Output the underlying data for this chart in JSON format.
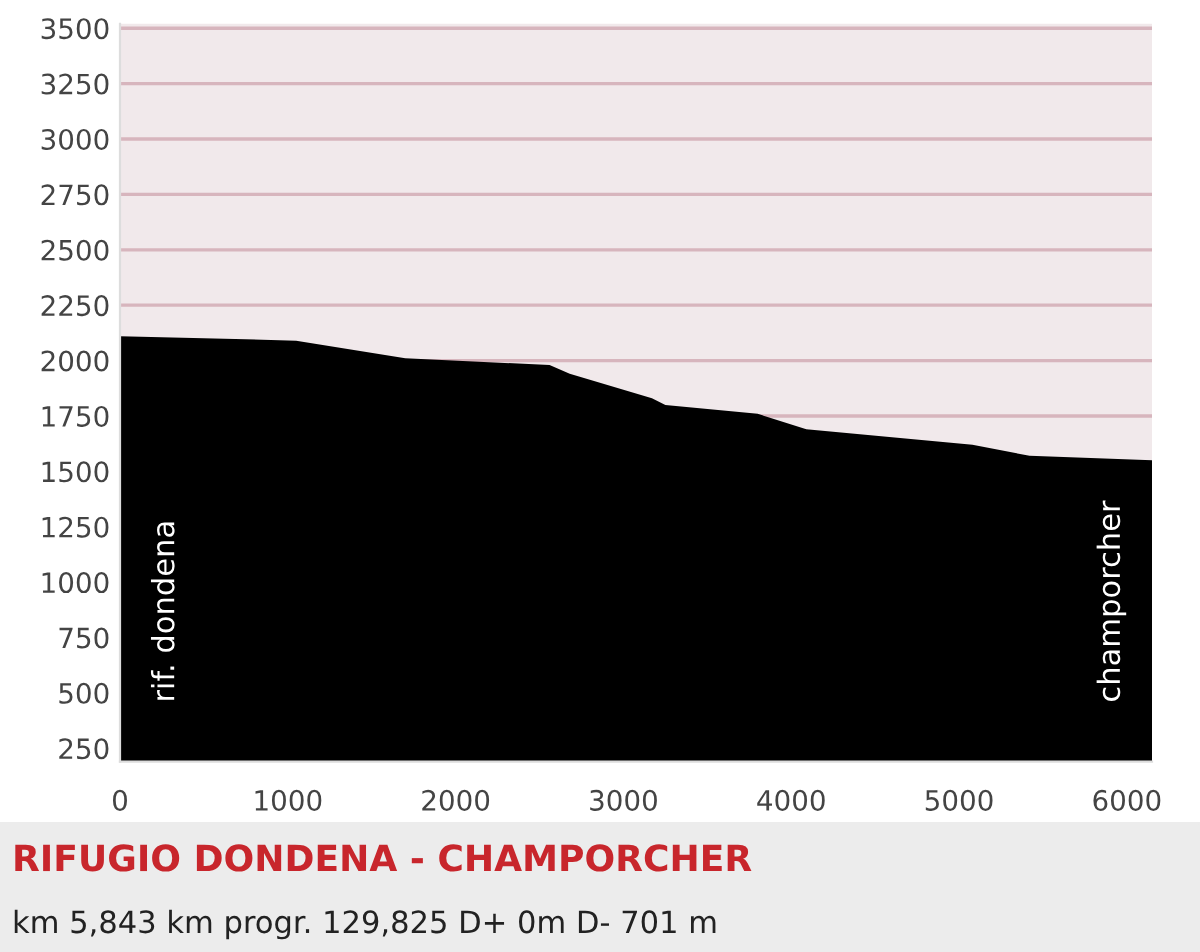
{
  "chart_data": {
    "type": "area",
    "title": "RIFUGIO DONDENA - CHAMPORCHER",
    "subtitle": "km 5,843 km progr. 129,825 D+ 0m D- 701 m",
    "x": [
      0,
      1050,
      1700,
      2560,
      2680,
      3170,
      3250,
      3800,
      4090,
      5080,
      5420,
      6150
    ],
    "values": [
      2110,
      2090,
      2010,
      1980,
      1940,
      1830,
      1800,
      1760,
      1690,
      1620,
      1570,
      1550
    ],
    "color": "#000000",
    "xlim": [
      0,
      6150
    ],
    "xticks": [
      0,
      1000,
      2000,
      3000,
      4000,
      5000,
      6000
    ],
    "ylim": [
      190,
      3520
    ],
    "yticks": [
      250,
      500,
      750,
      1000,
      1250,
      1500,
      1750,
      2000,
      2250,
      2500,
      2750,
      3000,
      3250,
      3500
    ],
    "grid": "y",
    "annotations": [
      "rif. dondena",
      "champorcher"
    ]
  }
}
